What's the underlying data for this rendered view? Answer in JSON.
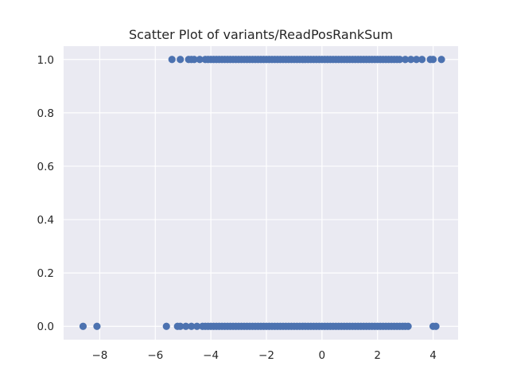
{
  "chart_data": {
    "type": "scatter",
    "title": "Scatter Plot of variants/ReadPosRankSum",
    "xlabel": "",
    "ylabel": "",
    "xlim": [
      -9.3,
      4.9
    ],
    "ylim": [
      -0.05,
      1.05
    ],
    "x_ticks": [
      -8,
      -6,
      -4,
      -2,
      0,
      2,
      4
    ],
    "x_tick_labels": [
      "−8",
      "−6",
      "−4",
      "−2",
      "0",
      "2",
      "4"
    ],
    "y_ticks": [
      0.0,
      0.2,
      0.4,
      0.6,
      0.8,
      1.0
    ],
    "y_tick_labels": [
      "0.0",
      "0.2",
      "0.4",
      "0.6",
      "0.8",
      "1.0"
    ],
    "grid": true,
    "legend": "none",
    "colors": {
      "point": "#4c72b0",
      "background": "#eaeaf2",
      "grid": "#ffffff"
    },
    "series": [
      {
        "x": [
          -5.4,
          -5.1,
          -4.8,
          -4.7,
          -4.6,
          -4.4,
          -4.2,
          -4.1,
          -4.0,
          -3.9,
          -3.8,
          -3.7,
          -3.6,
          -3.5,
          -3.4,
          -3.3,
          -3.2,
          -3.1,
          -3.0,
          -2.9,
          -2.8,
          -2.7,
          -2.6,
          -2.5,
          -2.4,
          -2.3,
          -2.2,
          -2.1,
          -2.0,
          -1.9,
          -1.8,
          -1.7,
          -1.6,
          -1.5,
          -1.4,
          -1.3,
          -1.2,
          -1.1,
          -1.0,
          -0.9,
          -0.8,
          -0.7,
          -0.6,
          -0.5,
          -0.4,
          -0.3,
          -0.2,
          -0.1,
          0.0,
          0.1,
          0.2,
          0.3,
          0.4,
          0.5,
          0.6,
          0.7,
          0.8,
          0.9,
          1.0,
          1.1,
          1.2,
          1.3,
          1.4,
          1.5,
          1.6,
          1.7,
          1.8,
          1.9,
          2.0,
          2.1,
          2.2,
          2.3,
          2.4,
          2.5,
          2.6,
          2.7,
          2.8,
          3.0,
          3.2,
          3.4,
          3.6,
          3.9,
          4.0,
          4.3
        ],
        "y": [
          1,
          1,
          1,
          1,
          1,
          1,
          1,
          1,
          1,
          1,
          1,
          1,
          1,
          1,
          1,
          1,
          1,
          1,
          1,
          1,
          1,
          1,
          1,
          1,
          1,
          1,
          1,
          1,
          1,
          1,
          1,
          1,
          1,
          1,
          1,
          1,
          1,
          1,
          1,
          1,
          1,
          1,
          1,
          1,
          1,
          1,
          1,
          1,
          1,
          1,
          1,
          1,
          1,
          1,
          1,
          1,
          1,
          1,
          1,
          1,
          1,
          1,
          1,
          1,
          1,
          1,
          1,
          1,
          1,
          1,
          1,
          1,
          1,
          1,
          1,
          1,
          1,
          1,
          1,
          1,
          1,
          1,
          1,
          1
        ]
      },
      {
        "x": [
          -8.6,
          -8.1,
          -5.6,
          -5.2,
          -5.1,
          -4.9,
          -4.7,
          -4.5,
          -4.3,
          -4.2,
          -4.1,
          -4.0,
          -3.9,
          -3.8,
          -3.7,
          -3.6,
          -3.5,
          -3.4,
          -3.3,
          -3.2,
          -3.1,
          -3.0,
          -2.9,
          -2.8,
          -2.7,
          -2.6,
          -2.5,
          -2.4,
          -2.3,
          -2.2,
          -2.1,
          -2.0,
          -1.9,
          -1.8,
          -1.7,
          -1.6,
          -1.5,
          -1.4,
          -1.3,
          -1.2,
          -1.1,
          -1.0,
          -0.9,
          -0.8,
          -0.7,
          -0.6,
          -0.5,
          -0.4,
          -0.3,
          -0.2,
          -0.1,
          0.0,
          0.1,
          0.2,
          0.3,
          0.4,
          0.5,
          0.6,
          0.7,
          0.8,
          0.9,
          1.0,
          1.1,
          1.2,
          1.3,
          1.4,
          1.5,
          1.6,
          1.7,
          1.8,
          1.9,
          2.0,
          2.1,
          2.2,
          2.3,
          2.4,
          2.5,
          2.6,
          2.7,
          2.8,
          2.9,
          3.0,
          3.1,
          4.0,
          4.1
        ],
        "y": [
          0,
          0,
          0,
          0,
          0,
          0,
          0,
          0,
          0,
          0,
          0,
          0,
          0,
          0,
          0,
          0,
          0,
          0,
          0,
          0,
          0,
          0,
          0,
          0,
          0,
          0,
          0,
          0,
          0,
          0,
          0,
          0,
          0,
          0,
          0,
          0,
          0,
          0,
          0,
          0,
          0,
          0,
          0,
          0,
          0,
          0,
          0,
          0,
          0,
          0,
          0,
          0,
          0,
          0,
          0,
          0,
          0,
          0,
          0,
          0,
          0,
          0,
          0,
          0,
          0,
          0,
          0,
          0,
          0,
          0,
          0,
          0,
          0,
          0,
          0,
          0,
          0,
          0,
          0,
          0,
          0,
          0,
          0,
          0,
          0
        ]
      }
    ]
  }
}
